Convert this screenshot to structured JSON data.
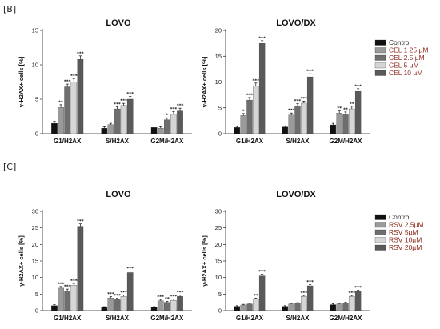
{
  "panels": [
    {
      "label": "[B]",
      "legend": [
        "Control",
        "CEL 1 25 µM",
        "CEL 2.5 µM",
        "CEL 5 µM",
        "CEL 10 µM"
      ]
    },
    {
      "label": "[C]",
      "legend": [
        "Control",
        "RSV 2.5µM",
        "RSV 5µM",
        "RSV 10µM",
        "RSV 20µM"
      ]
    }
  ],
  "series_colors": [
    "#111111",
    "#9a9a9a",
    "#6e6e6e",
    "#d6d6d6",
    "#5a5a5a"
  ],
  "chart_data": [
    {
      "type": "bar",
      "title": "LOVO",
      "ylabel": "γ-H2AX+ cells [%]",
      "ylim": [
        0,
        15
      ],
      "yticks": [
        0,
        5,
        10,
        15
      ],
      "categories": [
        "G1/H2AX",
        "S/H2AX",
        "G2M/H2AX"
      ],
      "series": [
        {
          "name": "Control",
          "values": [
            1.5,
            0.8,
            0.9
          ],
          "errors": [
            0.3,
            0.2,
            0.2
          ],
          "stars": [
            "",
            "",
            ""
          ]
        },
        {
          "name": "CEL 1 25 µM",
          "values": [
            3.8,
            1.3,
            0.8
          ],
          "errors": [
            0.4,
            0.2,
            0.2
          ],
          "stars": [
            "**",
            "",
            ""
          ]
        },
        {
          "name": "CEL 2.5 µM",
          "values": [
            6.8,
            3.6,
            2.0
          ],
          "errors": [
            0.4,
            0.3,
            0.3
          ],
          "stars": [
            "***",
            "***",
            "*"
          ]
        },
        {
          "name": "CEL 5 µM",
          "values": [
            7.5,
            4.1,
            2.8
          ],
          "errors": [
            0.5,
            0.3,
            0.4
          ],
          "stars": [
            "***",
            "***",
            "***"
          ]
        },
        {
          "name": "CEL 10 µM",
          "values": [
            10.8,
            5.0,
            3.3
          ],
          "errors": [
            0.5,
            0.4,
            0.4
          ],
          "stars": [
            "***",
            "***",
            "***"
          ]
        }
      ]
    },
    {
      "type": "bar",
      "title": "LOVO/DX",
      "ylabel": "γ-H2AX+ cells [%]",
      "ylim": [
        0,
        20
      ],
      "yticks": [
        0,
        5,
        10,
        15,
        20
      ],
      "categories": [
        "G1/H2AX",
        "S/H2AX",
        "G2M/H2AX"
      ],
      "series": [
        {
          "name": "Control",
          "values": [
            1.2,
            1.3,
            1.7
          ],
          "errors": [
            0.2,
            0.2,
            0.3
          ],
          "stars": [
            "",
            "",
            ""
          ]
        },
        {
          "name": "CEL 1 25 µM",
          "values": [
            3.5,
            3.6,
            4.0
          ],
          "errors": [
            0.4,
            0.4,
            0.4
          ],
          "stars": [
            "*",
            "***",
            "**"
          ]
        },
        {
          "name": "CEL 2.5 µM",
          "values": [
            6.5,
            5.4,
            3.8
          ],
          "errors": [
            0.5,
            0.4,
            0.4
          ],
          "stars": [
            "***",
            "***",
            "**"
          ]
        },
        {
          "name": "CEL 5 µM",
          "values": [
            9.2,
            5.9,
            4.8
          ],
          "errors": [
            0.6,
            0.4,
            0.5
          ],
          "stars": [
            "***",
            "***",
            "**"
          ]
        },
        {
          "name": "CEL 10 µM",
          "values": [
            17.5,
            11.0,
            8.2
          ],
          "errors": [
            0.5,
            0.6,
            0.5
          ],
          "stars": [
            "***",
            "***",
            "***"
          ]
        }
      ]
    },
    {
      "type": "bar",
      "title": "LOVO",
      "ylabel": "γ-H2AX+ cells [%]",
      "ylim": [
        0,
        30
      ],
      "yticks": [
        0,
        5,
        10,
        15,
        20,
        25,
        30
      ],
      "categories": [
        "G1/H2AX",
        "S/H2AX",
        "G2M/H2AX"
      ],
      "series": [
        {
          "name": "Control",
          "values": [
            1.5,
            1.0,
            1.0
          ],
          "errors": [
            0.3,
            0.2,
            0.2
          ],
          "stars": [
            "",
            "",
            ""
          ]
        },
        {
          "name": "RSV 2.5µM",
          "values": [
            6.8,
            3.8,
            3.0
          ],
          "errors": [
            0.5,
            0.4,
            0.4
          ],
          "stars": [
            "***",
            "***",
            "***"
          ]
        },
        {
          "name": "RSV 5µM",
          "values": [
            6.0,
            3.3,
            2.5
          ],
          "errors": [
            0.5,
            0.4,
            0.3
          ],
          "stars": [
            "***",
            "***",
            "**"
          ]
        },
        {
          "name": "RSV 10µM",
          "values": [
            7.7,
            4.3,
            3.1
          ],
          "errors": [
            0.5,
            0.4,
            0.4
          ],
          "stars": [
            "***",
            "***",
            "***"
          ]
        },
        {
          "name": "RSV 20µM",
          "values": [
            25.5,
            11.5,
            4.3
          ],
          "errors": [
            0.7,
            0.5,
            0.4
          ],
          "stars": [
            "***",
            "***",
            "***"
          ]
        }
      ]
    },
    {
      "type": "bar",
      "title": "LOVO/DX",
      "ylabel": "γ-H2AX+ cells [%]",
      "ylim": [
        0,
        30
      ],
      "yticks": [
        0,
        5,
        10,
        15,
        20,
        25,
        30
      ],
      "categories": [
        "G1/H2AX",
        "S/H2AX",
        "G2M/H2AX"
      ],
      "series": [
        {
          "name": "Control",
          "values": [
            1.3,
            1.3,
            1.8
          ],
          "errors": [
            0.2,
            0.2,
            0.3
          ],
          "stars": [
            "",
            "",
            ""
          ]
        },
        {
          "name": "RSV 2.5µM",
          "values": [
            1.7,
            2.0,
            2.0
          ],
          "errors": [
            0.2,
            0.2,
            0.2
          ],
          "stars": [
            "",
            "",
            ""
          ]
        },
        {
          "name": "RSV 5µM",
          "values": [
            2.0,
            2.2,
            2.3
          ],
          "errors": [
            0.2,
            0.2,
            0.2
          ],
          "stars": [
            "",
            "",
            ""
          ]
        },
        {
          "name": "RSV 10µM",
          "values": [
            3.5,
            4.3,
            4.3
          ],
          "errors": [
            0.3,
            0.3,
            0.3
          ],
          "stars": [
            "**",
            "***",
            "***"
          ]
        },
        {
          "name": "RSV 20µM",
          "values": [
            10.5,
            7.5,
            5.9
          ],
          "errors": [
            0.5,
            0.4,
            0.3
          ],
          "stars": [
            "***",
            "***",
            "***"
          ]
        }
      ]
    }
  ]
}
